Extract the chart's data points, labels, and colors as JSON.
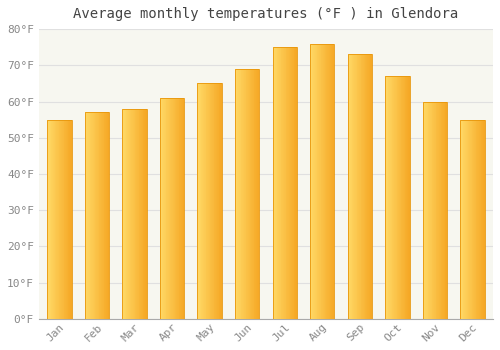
{
  "title": "Average monthly temperatures (°F ) in Glendora",
  "months": [
    "Jan",
    "Feb",
    "Mar",
    "Apr",
    "May",
    "Jun",
    "Jul",
    "Aug",
    "Sep",
    "Oct",
    "Nov",
    "Dec"
  ],
  "values": [
    55,
    57,
    58,
    61,
    65,
    69,
    75,
    76,
    73,
    67,
    60,
    55
  ],
  "bar_color_left": "#FFD966",
  "bar_color_right": "#F5A623",
  "bar_edge_color": "#E8960A",
  "background_color": "#FFFFFF",
  "plot_bg_color": "#F7F7F0",
  "grid_color": "#E0E0E0",
  "text_color": "#888888",
  "title_color": "#444444",
  "ylim": [
    0,
    80
  ],
  "ytick_step": 10,
  "title_fontsize": 10,
  "tick_fontsize": 8,
  "bar_width": 0.65
}
